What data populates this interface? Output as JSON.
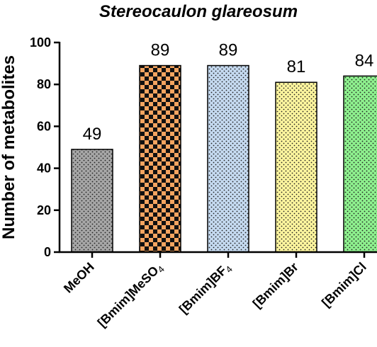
{
  "chart_data": {
    "type": "bar",
    "title": "Stereocaulon glareosum",
    "ylabel": "Number of metabolites",
    "xlabel": "",
    "ylim": [
      0,
      100
    ],
    "yticks": [
      0,
      20,
      40,
      60,
      80,
      100
    ],
    "categories": [
      {
        "label": "MeOH",
        "main": "MeOH",
        "sub": ""
      },
      {
        "label": "[Bmim]MeSO4",
        "main": "[Bmim]MeSO",
        "sub": "4"
      },
      {
        "label": "[Bmim]BF4",
        "main": "[Bmim]BF",
        "sub": "4"
      },
      {
        "label": "[Bmim]Br",
        "main": "[Bmim]Br",
        "sub": ""
      },
      {
        "label": "[Bmim]Cl",
        "main": "[Bmim]Cl",
        "sub": ""
      }
    ],
    "values": [
      49,
      89,
      89,
      81,
      84
    ],
    "data_labels": [
      "49",
      "89",
      "89",
      "81",
      "84"
    ],
    "bar_styles": [
      {
        "fill": "#a6a6a6",
        "pattern": "dots"
      },
      {
        "fill": "#f4a460",
        "pattern": "checker"
      },
      {
        "fill": "#c5daf0",
        "pattern": "dots"
      },
      {
        "fill": "#fdf59e",
        "pattern": "dots"
      },
      {
        "fill": "#8ef08e",
        "pattern": "dots"
      }
    ],
    "grid": false,
    "legend": "none"
  }
}
